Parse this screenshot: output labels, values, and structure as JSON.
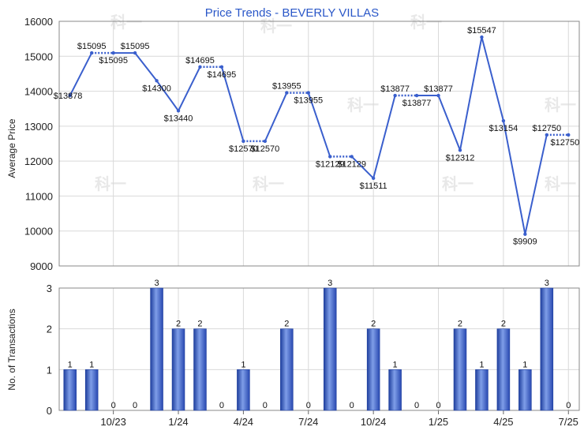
{
  "chart_data": [
    {
      "type": "line",
      "title": "Price Trends - BEVERLY VILLAS",
      "ylabel": "Average Price",
      "ylim": [
        9000,
        16000
      ],
      "yticks": [
        9000,
        10000,
        11000,
        12000,
        13000,
        14000,
        15000,
        16000
      ],
      "x": [
        "8/23",
        "9/23",
        "10/23",
        "11/23",
        "12/23",
        "1/24",
        "2/24",
        "3/24",
        "4/24",
        "5/24",
        "6/24",
        "7/24",
        "8/24",
        "9/24",
        "10/24",
        "11/24",
        "12/24",
        "1/25",
        "2/25",
        "3/25",
        "4/25",
        "5/25",
        "6/25",
        "7/25"
      ],
      "series": [
        {
          "values": [
            13878,
            15095,
            15095,
            15095,
            14300,
            13440,
            14695,
            14695,
            12570,
            12570,
            13955,
            13955,
            12129,
            12129,
            11511,
            13877,
            13877,
            13877,
            12312,
            15547,
            13154,
            9909,
            12750,
            12750
          ],
          "labels": [
            "$13878",
            "$15095",
            "$15095",
            "$15095",
            "$14300",
            "$13440",
            "$14695",
            "$14695",
            "$12570",
            "$12570",
            "$13955",
            "$13955",
            "$12129",
            "$12129",
            "$11511",
            "$13877",
            "$13877",
            "$13877",
            "$12312",
            "$15547",
            "$13154",
            "$9909",
            "$12750",
            "$12750"
          ],
          "carried": [
            false,
            false,
            true,
            false,
            false,
            false,
            false,
            true,
            false,
            true,
            false,
            true,
            false,
            true,
            false,
            false,
            true,
            false,
            false,
            false,
            false,
            false,
            false,
            true
          ]
        }
      ]
    },
    {
      "type": "bar",
      "ylabel": "No. of Transactions",
      "ylim": [
        0,
        3
      ],
      "yticks": [
        0,
        1,
        2,
        3
      ],
      "categories": [
        "8/23",
        "9/23",
        "10/23",
        "11/23",
        "12/23",
        "1/24",
        "2/24",
        "3/24",
        "4/24",
        "5/24",
        "6/24",
        "7/24",
        "8/24",
        "9/24",
        "10/24",
        "11/24",
        "12/24",
        "1/25",
        "2/25",
        "3/25",
        "4/25",
        "5/25",
        "6/25",
        "7/25"
      ],
      "xtick_labels": [
        "10/23",
        "1/24",
        "4/24",
        "7/24",
        "10/24",
        "1/25",
        "4/25",
        "7/25"
      ],
      "values": [
        1,
        1,
        0,
        0,
        3,
        2,
        2,
        0,
        1,
        0,
        2,
        0,
        3,
        0,
        2,
        1,
        0,
        0,
        2,
        1,
        2,
        1,
        3,
        0
      ]
    }
  ],
  "colors": {
    "line": "#3a5fcd",
    "bar": "#3a5fcd",
    "title": "#2a57c8"
  },
  "watermark": "科一"
}
